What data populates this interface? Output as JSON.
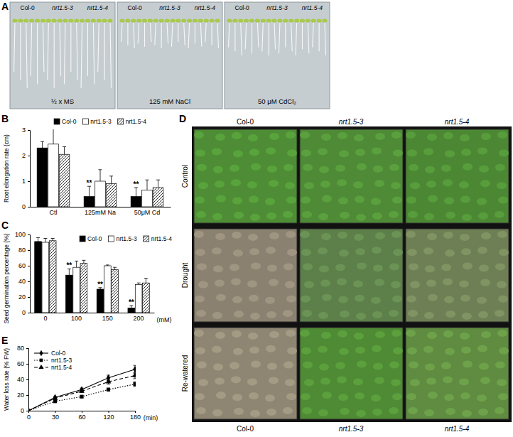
{
  "chart_data": [
    {
      "panel_label": "B",
      "type": "bar",
      "y_label": "Root elongation rate (cm)",
      "categories": [
        "Ctl",
        "125mM Na",
        "50μM Cd"
      ],
      "series": [
        {
          "name": "Col-0",
          "color": "#000000",
          "marker": "solid",
          "values": [
            2.3,
            0.4,
            0.4
          ],
          "errors": [
            0.25,
            0.4,
            0.35
          ],
          "significance": [
            null,
            "**",
            "**"
          ]
        },
        {
          "name": "nrt1.5-3",
          "color": "#ffffff",
          "marker": "solid",
          "values": [
            2.45,
            1.0,
            0.65
          ],
          "errors": [
            0.7,
            0.45,
            0.4
          ]
        },
        {
          "name": "nrt1.5-4",
          "color": "#ffffff",
          "marker": "hatch",
          "values": [
            2.05,
            0.9,
            0.75
          ],
          "errors": [
            0.3,
            0.3,
            0.3
          ]
        }
      ],
      "ylim": [
        0,
        3
      ],
      "yticks": [
        0,
        1,
        2,
        3
      ],
      "legend": "top"
    },
    {
      "panel_label": "C",
      "type": "bar",
      "y_label": "Seed germination percentage (%)",
      "x_label": "(mM)",
      "categories": [
        "0",
        "100",
        "150",
        "200"
      ],
      "series": [
        {
          "name": "Col-0",
          "color": "#000000",
          "marker": "solid",
          "values": [
            91,
            48,
            30,
            6
          ],
          "errors": [
            5,
            8,
            2,
            3
          ],
          "significance": [
            null,
            "**",
            "**",
            "**"
          ]
        },
        {
          "name": "nrt1.5-3",
          "color": "#ffffff",
          "marker": "solid",
          "values": [
            90,
            58,
            60,
            36
          ],
          "errors": [
            5,
            8,
            1,
            2
          ]
        },
        {
          "name": "nrt1.5-4",
          "color": "#ffffff",
          "marker": "hatch",
          "values": [
            92,
            63,
            55,
            38
          ],
          "errors": [
            3,
            4,
            3,
            6
          ]
        }
      ],
      "ylim": [
        0,
        100
      ],
      "yticks": [
        0,
        20,
        40,
        60,
        80,
        100
      ],
      "legend": "top-right"
    },
    {
      "panel_label": "E",
      "type": "line",
      "y_label": "Water loss rate (% FW)",
      "x_label": "(min)",
      "categories": [
        "0",
        "30",
        "60",
        "120",
        "180"
      ],
      "series": [
        {
          "name": "Col-0",
          "color": "#000000",
          "marker": "diamond",
          "line_style": "solid",
          "values": [
            0,
            17,
            27,
            42,
            53
          ],
          "errors": [
            0,
            1,
            2,
            3.5,
            5
          ]
        },
        {
          "name": "nrt1.5-3",
          "color": "#000000",
          "marker": "square",
          "line_style": "dotted",
          "values": [
            0,
            12,
            18,
            27,
            34
          ],
          "errors": [
            0,
            1.5,
            1.5,
            2,
            3
          ]
        },
        {
          "name": "nrt1.5-4",
          "color": "#000000",
          "marker": "triangle",
          "line_style": "dashed",
          "values": [
            0,
            16,
            25,
            37,
            45
          ],
          "errors": [
            0,
            1,
            1.5,
            3,
            4
          ]
        }
      ],
      "ylim": [
        0,
        80
      ],
      "yticks": [
        0,
        20,
        40,
        60,
        80
      ],
      "legend": "top-left"
    }
  ],
  "photo_panels": [
    {
      "panel_label": "A",
      "genotypes": [
        "Col-0",
        "nrt1.5-3",
        "nrt1.5-4"
      ],
      "conditions": [
        "½ x MS",
        "125 mM NaCl",
        "50 μM CdCl₂"
      ]
    },
    {
      "panel_label": "D",
      "genotypes": [
        "Col-0",
        "nrt1.5-3",
        "nrt1.5-4"
      ],
      "conditions": [
        "Control",
        "Drought",
        "Re-watered"
      ]
    }
  ]
}
